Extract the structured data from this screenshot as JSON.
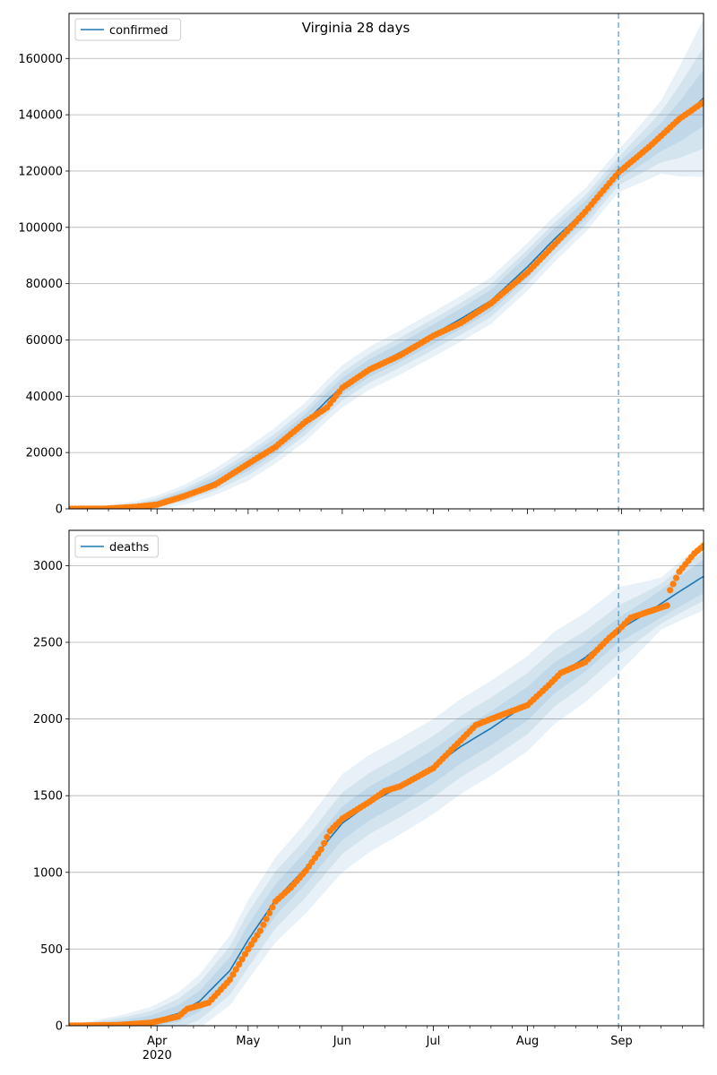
{
  "title": "Virginia 28 days",
  "colors": {
    "model_line": "#1f77b4",
    "band": "#1f77b4",
    "observed": "#ff7f0e",
    "forecast_marker": "#1f77b4",
    "grid": "#b0b0b0"
  },
  "x_axis": {
    "month_ticks": [
      "Apr",
      "May",
      "Jun",
      "Jul",
      "Aug",
      "Sep"
    ],
    "year_label": "2020"
  },
  "chart_data": [
    {
      "type": "line",
      "title": "Virginia 28 days",
      "legend": "confirmed",
      "legend_position": "top-left",
      "grid": "y",
      "xlim": [
        "2020-03-03",
        "2020-09-28"
      ],
      "ylim": [
        0,
        176000
      ],
      "yticks": [
        0,
        20000,
        40000,
        60000,
        80000,
        100000,
        120000,
        140000,
        160000
      ],
      "forecast_start": "2020-08-31",
      "model": {
        "name": "confirmed",
        "points": [
          [
            "2020-03-03",
            0
          ],
          [
            "2020-03-15",
            100
          ],
          [
            "2020-03-25",
            800
          ],
          [
            "2020-04-01",
            2200
          ],
          [
            "2020-04-10",
            5000
          ],
          [
            "2020-04-20",
            9500
          ],
          [
            "2020-05-01",
            16000
          ],
          [
            "2020-05-10",
            22500
          ],
          [
            "2020-05-20",
            31000
          ],
          [
            "2020-05-27",
            38500
          ],
          [
            "2020-06-01",
            43500
          ],
          [
            "2020-06-10",
            50000
          ],
          [
            "2020-06-20",
            55500
          ],
          [
            "2020-07-01",
            62000
          ],
          [
            "2020-07-10",
            67500
          ],
          [
            "2020-07-20",
            74000
          ],
          [
            "2020-08-01",
            86000
          ],
          [
            "2020-08-10",
            96000
          ],
          [
            "2020-08-20",
            106000
          ],
          [
            "2020-08-31",
            120000
          ],
          [
            "2020-09-10",
            128500
          ],
          [
            "2020-09-20",
            137500
          ],
          [
            "2020-09-28",
            146000
          ]
        ],
        "bands_halfwidth": [
          [
            [
              "2020-03-03",
              0
            ],
            [
              "2020-04-01",
              800
            ],
            [
              "2020-05-01",
              2500
            ],
            [
              "2020-06-01",
              3000
            ],
            [
              "2020-07-01",
              3500
            ],
            [
              "2020-08-01",
              4000
            ],
            [
              "2020-08-31",
              3000
            ],
            [
              "2020-09-14",
              5000
            ],
            [
              "2020-09-28",
              10000
            ]
          ],
          [
            [
              "2020-03-03",
              0
            ],
            [
              "2020-04-01",
              1500
            ],
            [
              "2020-05-01",
              4000
            ],
            [
              "2020-06-01",
              5000
            ],
            [
              "2020-07-01",
              5500
            ],
            [
              "2020-08-01",
              6000
            ],
            [
              "2020-08-31",
              5000
            ],
            [
              "2020-09-14",
              9000
            ],
            [
              "2020-09-28",
              18000
            ]
          ],
          [
            [
              "2020-03-03",
              0
            ],
            [
              "2020-04-01",
              2500
            ],
            [
              "2020-05-01",
              6000
            ],
            [
              "2020-06-01",
              7500
            ],
            [
              "2020-07-01",
              8000
            ],
            [
              "2020-08-01",
              8500
            ],
            [
              "2020-08-31",
              7500
            ],
            [
              "2020-09-14",
              13000
            ],
            [
              "2020-09-28",
              28000
            ]
          ]
        ]
      },
      "observed": {
        "name": "observed",
        "points": [
          [
            "2020-03-03",
            0
          ],
          [
            "2020-03-15",
            50
          ],
          [
            "2020-03-25",
            700
          ],
          [
            "2020-04-01",
            1500
          ],
          [
            "2020-04-10",
            4500
          ],
          [
            "2020-04-20",
            8500
          ],
          [
            "2020-05-01",
            16000
          ],
          [
            "2020-05-10",
            22000
          ],
          [
            "2020-05-20",
            31000
          ],
          [
            "2020-05-27",
            36000
          ],
          [
            "2020-06-01",
            43000
          ],
          [
            "2020-06-10",
            49500
          ],
          [
            "2020-06-20",
            54500
          ],
          [
            "2020-07-01",
            61500
          ],
          [
            "2020-07-10",
            66000
          ],
          [
            "2020-07-20",
            73000
          ],
          [
            "2020-08-01",
            84000
          ],
          [
            "2020-08-10",
            94000
          ],
          [
            "2020-08-20",
            105500
          ],
          [
            "2020-08-31",
            119500
          ],
          [
            "2020-09-10",
            128500
          ],
          [
            "2020-09-20",
            138500
          ],
          [
            "2020-09-28",
            144500
          ]
        ]
      }
    },
    {
      "type": "line",
      "legend": "deaths",
      "legend_position": "top-left",
      "grid": "y",
      "xlim": [
        "2020-03-03",
        "2020-09-28"
      ],
      "ylim": [
        0,
        3230
      ],
      "yticks": [
        0,
        500,
        1000,
        1500,
        2000,
        2500,
        3000
      ],
      "forecast_start": "2020-08-31",
      "model": {
        "name": "deaths",
        "points": [
          [
            "2020-03-03",
            0
          ],
          [
            "2020-03-20",
            10
          ],
          [
            "2020-03-30",
            30
          ],
          [
            "2020-04-08",
            80
          ],
          [
            "2020-04-15",
            160
          ],
          [
            "2020-04-25",
            360
          ],
          [
            "2020-05-01",
            560
          ],
          [
            "2020-05-10",
            820
          ],
          [
            "2020-05-20",
            1030
          ],
          [
            "2020-05-27",
            1200
          ],
          [
            "2020-06-01",
            1320
          ],
          [
            "2020-06-10",
            1450
          ],
          [
            "2020-06-20",
            1560
          ],
          [
            "2020-07-01",
            1690
          ],
          [
            "2020-07-10",
            1820
          ],
          [
            "2020-07-20",
            1940
          ],
          [
            "2020-08-01",
            2100
          ],
          [
            "2020-08-10",
            2270
          ],
          [
            "2020-08-20",
            2400
          ],
          [
            "2020-08-31",
            2580
          ],
          [
            "2020-09-10",
            2700
          ],
          [
            "2020-09-20",
            2830
          ],
          [
            "2020-09-28",
            2930
          ]
        ],
        "bands_halfwidth": [
          [
            [
              "2020-03-03",
              0
            ],
            [
              "2020-04-01",
              40
            ],
            [
              "2020-05-01",
              100
            ],
            [
              "2020-06-01",
              110
            ],
            [
              "2020-07-01",
              110
            ],
            [
              "2020-08-01",
              110
            ],
            [
              "2020-08-31",
              80
            ],
            [
              "2020-09-14",
              90
            ],
            [
              "2020-09-28",
              110
            ]
          ],
          [
            [
              "2020-03-03",
              0
            ],
            [
              "2020-04-01",
              70
            ],
            [
              "2020-05-01",
              180
            ],
            [
              "2020-06-01",
              200
            ],
            [
              "2020-07-01",
              200
            ],
            [
              "2020-08-01",
              200
            ],
            [
              "2020-08-31",
              160
            ],
            [
              "2020-09-14",
              130
            ],
            [
              "2020-09-28",
              160
            ]
          ],
          [
            [
              "2020-03-03",
              0
            ],
            [
              "2020-04-01",
              100
            ],
            [
              "2020-05-01",
              260
            ],
            [
              "2020-06-01",
              320
            ],
            [
              "2020-07-01",
              310
            ],
            [
              "2020-08-01",
              310
            ],
            [
              "2020-08-31",
              280
            ],
            [
              "2020-09-14",
              170
            ],
            [
              "2020-09-28",
              220
            ]
          ]
        ]
      },
      "observed": {
        "name": "observed",
        "points": [
          [
            "2020-03-03",
            0
          ],
          [
            "2020-03-20",
            5
          ],
          [
            "2020-03-30",
            20
          ],
          [
            "2020-04-08",
            60
          ],
          [
            "2020-04-11",
            110
          ],
          [
            "2020-04-18",
            150
          ],
          [
            "2020-04-25",
            300
          ],
          [
            "2020-05-01",
            500
          ],
          [
            "2020-05-05",
            620
          ],
          [
            "2020-05-10",
            810
          ],
          [
            "2020-05-15",
            900
          ],
          [
            "2020-05-20",
            1010
          ],
          [
            "2020-05-25",
            1150
          ],
          [
            "2020-05-28",
            1270
          ],
          [
            "2020-06-01",
            1350
          ],
          [
            "2020-06-10",
            1460
          ],
          [
            "2020-06-15",
            1530
          ],
          [
            "2020-06-20",
            1560
          ],
          [
            "2020-07-01",
            1680
          ],
          [
            "2020-07-10",
            1860
          ],
          [
            "2020-07-15",
            1960
          ],
          [
            "2020-07-20",
            2000
          ],
          [
            "2020-08-01",
            2090
          ],
          [
            "2020-08-08",
            2220
          ],
          [
            "2020-08-12",
            2300
          ],
          [
            "2020-08-20",
            2370
          ],
          [
            "2020-08-28",
            2530
          ],
          [
            "2020-08-31",
            2580
          ],
          [
            "2020-09-04",
            2660
          ],
          [
            "2020-09-13",
            2720
          ],
          [
            "2020-09-16",
            2740
          ],
          [
            "2020-09-17",
            2840
          ],
          [
            "2020-09-20",
            2960
          ],
          [
            "2020-09-25",
            3080
          ],
          [
            "2020-09-28",
            3130
          ]
        ]
      }
    }
  ]
}
